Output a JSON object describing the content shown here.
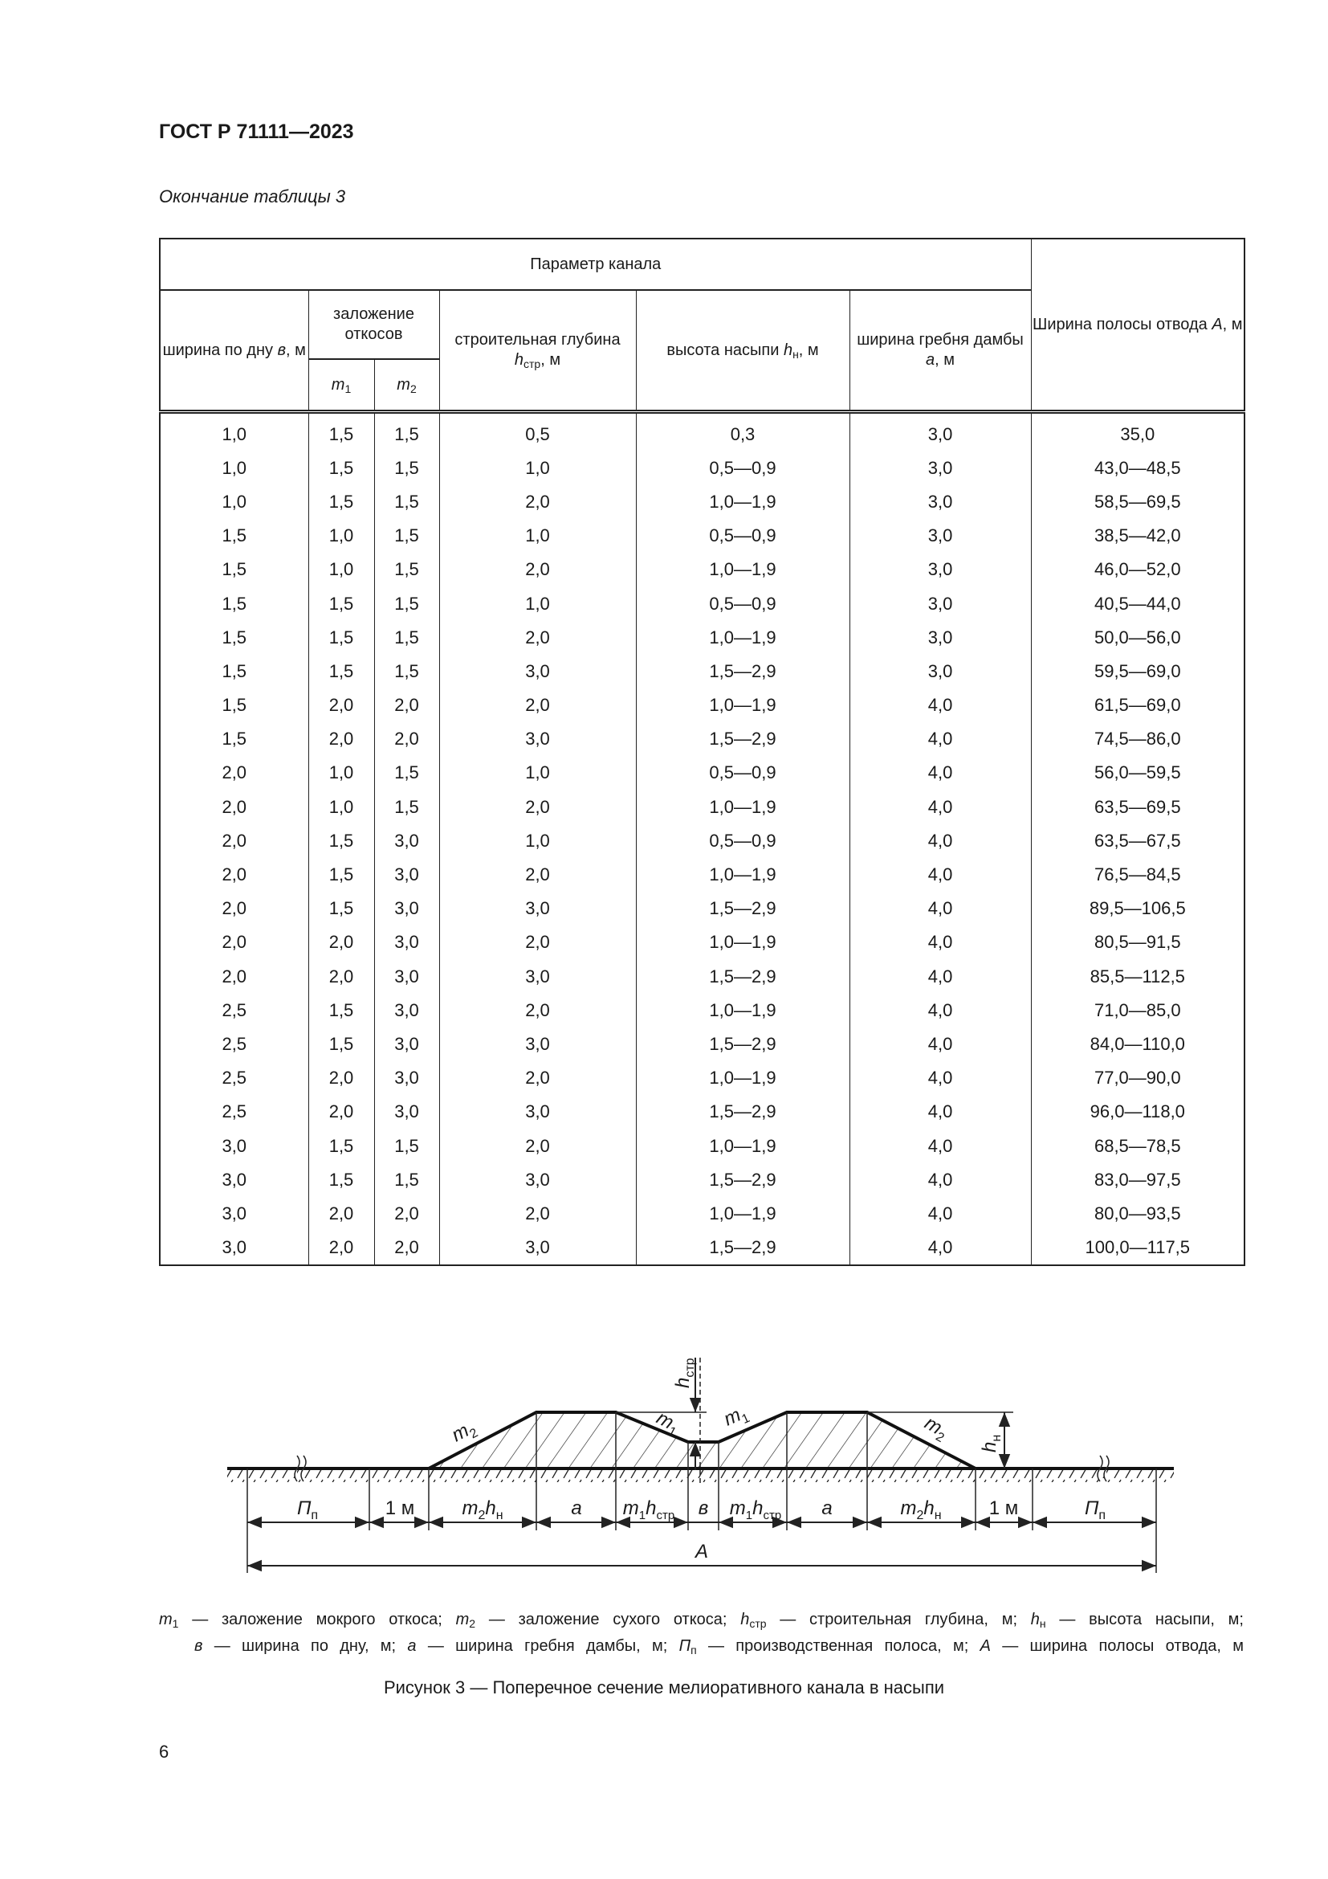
{
  "header": {
    "doc_title": "ГОСТ Р 71111—2023",
    "table_caption": "Окончание таблицы 3"
  },
  "table": {
    "group_header": "Параметр канала",
    "col_b": {
      "text": "ширина по дну ",
      "sym": "в",
      "unit": ", м"
    },
    "col_slopes": "заложение откосов",
    "col_m1": {
      "sym": "m",
      "sub": "1"
    },
    "col_m2": {
      "sym": "m",
      "sub": "2"
    },
    "col_h_str": {
      "text": "строительная глубина ",
      "sym": "h",
      "sub": "стр",
      "unit": ", м"
    },
    "col_h_n": {
      "text": "высота насыпи ",
      "sym": "h",
      "sub": "н",
      "unit": ", м"
    },
    "col_a": {
      "text": "ширина гребня дамбы ",
      "sym": "a",
      "unit": ", м"
    },
    "col_A": {
      "text": "Ширина полосы отвода ",
      "sym": "A",
      "unit": ", м"
    },
    "rows": [
      [
        "1,0",
        "1,5",
        "1,5",
        "0,5",
        "0,3",
        "3,0",
        "35,0"
      ],
      [
        "1,0",
        "1,5",
        "1,5",
        "1,0",
        "0,5—0,9",
        "3,0",
        "43,0—48,5"
      ],
      [
        "1,0",
        "1,5",
        "1,5",
        "2,0",
        "1,0—1,9",
        "3,0",
        "58,5—69,5"
      ],
      [
        "1,5",
        "1,0",
        "1,5",
        "1,0",
        "0,5—0,9",
        "3,0",
        "38,5—42,0"
      ],
      [
        "1,5",
        "1,0",
        "1,5",
        "2,0",
        "1,0—1,9",
        "3,0",
        "46,0—52,0"
      ],
      [
        "1,5",
        "1,5",
        "1,5",
        "1,0",
        "0,5—0,9",
        "3,0",
        "40,5—44,0"
      ],
      [
        "1,5",
        "1,5",
        "1,5",
        "2,0",
        "1,0—1,9",
        "3,0",
        "50,0—56,0"
      ],
      [
        "1,5",
        "1,5",
        "1,5",
        "3,0",
        "1,5—2,9",
        "3,0",
        "59,5—69,0"
      ],
      [
        "1,5",
        "2,0",
        "2,0",
        "2,0",
        "1,0—1,9",
        "4,0",
        "61,5—69,0"
      ],
      [
        "1,5",
        "2,0",
        "2,0",
        "3,0",
        "1,5—2,9",
        "4,0",
        "74,5—86,0"
      ],
      [
        "2,0",
        "1,0",
        "1,5",
        "1,0",
        "0,5—0,9",
        "4,0",
        "56,0—59,5"
      ],
      [
        "2,0",
        "1,0",
        "1,5",
        "2,0",
        "1,0—1,9",
        "4,0",
        "63,5—69,5"
      ],
      [
        "2,0",
        "1,5",
        "3,0",
        "1,0",
        "0,5—0,9",
        "4,0",
        "63,5—67,5"
      ],
      [
        "2,0",
        "1,5",
        "3,0",
        "2,0",
        "1,0—1,9",
        "4,0",
        "76,5—84,5"
      ],
      [
        "2,0",
        "1,5",
        "3,0",
        "3,0",
        "1,5—2,9",
        "4,0",
        "89,5—106,5"
      ],
      [
        "2,0",
        "2,0",
        "3,0",
        "2,0",
        "1,0—1,9",
        "4,0",
        "80,5—91,5"
      ],
      [
        "2,0",
        "2,0",
        "3,0",
        "3,0",
        "1,5—2,9",
        "4,0",
        "85,5—112,5"
      ],
      [
        "2,5",
        "1,5",
        "3,0",
        "2,0",
        "1,0—1,9",
        "4,0",
        "71,0—85,0"
      ],
      [
        "2,5",
        "1,5",
        "3,0",
        "3,0",
        "1,5—2,9",
        "4,0",
        "84,0—110,0"
      ],
      [
        "2,5",
        "2,0",
        "3,0",
        "2,0",
        "1,0—1,9",
        "4,0",
        "77,0—90,0"
      ],
      [
        "2,5",
        "2,0",
        "3,0",
        "3,0",
        "1,5—2,9",
        "4,0",
        "96,0—118,0"
      ],
      [
        "3,0",
        "1,5",
        "1,5",
        "2,0",
        "1,0—1,9",
        "4,0",
        "68,5—78,5"
      ],
      [
        "3,0",
        "1,5",
        "1,5",
        "3,0",
        "1,5—2,9",
        "4,0",
        "83,0—97,5"
      ],
      [
        "3,0",
        "2,0",
        "2,0",
        "2,0",
        "1,0—1,9",
        "4,0",
        "80,0—93,5"
      ],
      [
        "3,0",
        "2,0",
        "2,0",
        "3,0",
        "1,5—2,9",
        "4,0",
        "100,0—117,5"
      ]
    ]
  },
  "figure": {
    "labels": {
      "m": "m",
      "h": "h",
      "sub1": "1",
      "sub2": "2",
      "sub_str": "стр",
      "sub_n": "н",
      "P": "П",
      "sub_p": "п",
      "one_m": "1 м",
      "a": "a",
      "b": "в",
      "A": "A"
    },
    "legend": {
      "line1": [
        {
          "sym": "m",
          "sub": "1",
          "text": " — заложение мокрого откоса; "
        },
        {
          "sym": "m",
          "sub": "2",
          "text": " — заложение сухого откоса; "
        },
        {
          "sym": "h",
          "sub": "стр",
          "text": " — строительная глубина, м; "
        },
        {
          "sym": "h",
          "sub": "н",
          "text": " — высота насыпи, м;"
        }
      ],
      "line2": [
        {
          "sym": "в",
          "sub": "",
          "text": " — ширина по дну, м; "
        },
        {
          "sym": "a",
          "sub": "",
          "text": " — ширина гребня дамбы, м; "
        },
        {
          "sym": "П",
          "sub": "п",
          "text": " — производственная полоса, м; "
        },
        {
          "sym": "A",
          "sub": "",
          "text": " — ширина полосы отвода, м"
        }
      ]
    },
    "caption": "Рисунок 3 — Поперечное сечение мелиоративного канала в насыпи"
  },
  "footer": {
    "page_number": "6"
  }
}
